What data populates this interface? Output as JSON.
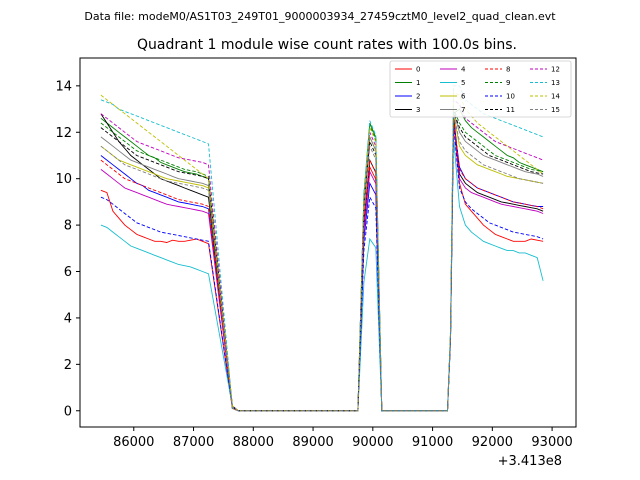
{
  "chart_data": {
    "type": "line",
    "supertitle": "Data file: modeM0/AS1T03_249T01_9000003934_27459cztM0_level2_quad_clean.evt",
    "title": "Quadrant 1 module wise count rates with 100.0s bins.",
    "x_offset_label": "+3.413e8",
    "xlim": [
      85100,
      93400
    ],
    "ylim": [
      -0.7,
      15.2
    ],
    "x_ticks": [
      86000,
      87000,
      88000,
      89000,
      90000,
      91000,
      92000,
      93000
    ],
    "y_ticks": [
      0,
      2,
      4,
      6,
      8,
      10,
      12,
      14
    ],
    "grid": false,
    "legend_location": "upper right",
    "series": [
      {
        "name": "0",
        "color": "#ff0000",
        "linestyle": "solid",
        "s1": [
          9.5,
          9.4,
          8.6,
          8.3,
          8.0,
          7.8,
          7.6,
          7.5,
          7.4,
          7.3,
          7.3,
          7.25,
          7.35,
          7.3,
          7.3,
          7.35,
          7.4,
          7.3,
          7.2
        ],
        "s2": [
          9.8,
          8.9,
          8.6,
          8.3,
          8.0,
          7.8,
          7.6,
          7.5,
          7.4,
          7.3,
          7.3,
          7.3,
          7.4,
          7.35,
          7.3
        ],
        "p2": 10.5,
        "p3": 12.6
      },
      {
        "name": "1",
        "color": "#008000",
        "linestyle": "solid",
        "s1": [
          12.6,
          12.4,
          12.2,
          12.0,
          11.8,
          11.6,
          11.4,
          11.2,
          11.0,
          10.9,
          10.7,
          10.6,
          10.5,
          10.4,
          10.3,
          10.25,
          10.2,
          10.1,
          10.0
        ],
        "s2": [
          13.0,
          12.5,
          12.2,
          12.0,
          11.8,
          11.6,
          11.4,
          11.2,
          11.0,
          10.9,
          10.7,
          10.6,
          10.5,
          10.4,
          10.3
        ],
        "p2": 12.4,
        "p3": 12.8
      },
      {
        "name": "2",
        "color": "#0000ff",
        "linestyle": "solid",
        "s1": [
          11.0,
          10.8,
          10.6,
          10.4,
          10.2,
          10.0,
          9.8,
          9.7,
          9.5,
          9.4,
          9.3,
          9.2,
          9.1,
          9.0,
          8.95,
          8.9,
          8.85,
          8.8,
          8.7
        ],
        "s2": [
          10.5,
          10.0,
          9.8,
          9.6,
          9.5,
          9.4,
          9.3,
          9.2,
          9.1,
          9.0,
          8.95,
          8.9,
          8.85,
          8.8,
          8.8
        ],
        "p2": 9.8,
        "p3": 12.5
      },
      {
        "name": "3",
        "color": "#000000",
        "linestyle": "solid",
        "s1": [
          12.8,
          12.4,
          12.0,
          11.6,
          11.3,
          11.0,
          10.8,
          10.6,
          10.4,
          10.2,
          10.0,
          9.9,
          9.8,
          9.7,
          9.6,
          9.5,
          9.4,
          9.3,
          9.2
        ],
        "s2": [
          10.2,
          9.8,
          9.6,
          9.4,
          9.3,
          9.2,
          9.1,
          9.0,
          8.95,
          8.9,
          8.85,
          8.8,
          8.75,
          8.7,
          8.6
        ],
        "p2": 10.8,
        "p3": 12.8
      },
      {
        "name": "4",
        "color": "#bf00bf",
        "linestyle": "solid",
        "s1": [
          10.4,
          10.2,
          10.0,
          9.8,
          9.6,
          9.5,
          9.4,
          9.3,
          9.2,
          9.1,
          9.0,
          8.9,
          8.85,
          8.8,
          8.75,
          8.7,
          8.65,
          8.6,
          8.5
        ],
        "s2": [
          10.0,
          9.6,
          9.4,
          9.3,
          9.2,
          9.1,
          9.0,
          8.9,
          8.85,
          8.8,
          8.75,
          8.7,
          8.65,
          8.6,
          8.5
        ],
        "p2": 10.3,
        "p3": 12.5
      },
      {
        "name": "5",
        "color": "#17becf",
        "linestyle": "solid",
        "s1": [
          8.0,
          7.9,
          7.7,
          7.5,
          7.3,
          7.1,
          7.0,
          6.9,
          6.8,
          6.7,
          6.6,
          6.5,
          6.4,
          6.3,
          6.25,
          6.2,
          6.1,
          6.0,
          5.9
        ],
        "s2": [
          8.8,
          8.0,
          7.7,
          7.5,
          7.3,
          7.2,
          7.1,
          7.0,
          6.9,
          6.9,
          6.8,
          6.8,
          6.7,
          6.6,
          5.6
        ],
        "p2": 7.4,
        "p3": 11.8
      },
      {
        "name": "6",
        "color": "#bfbf00",
        "linestyle": "solid",
        "s1": [
          11.4,
          11.2,
          11.0,
          10.8,
          10.7,
          10.6,
          10.5,
          10.4,
          10.3,
          10.2,
          10.1,
          10.0,
          9.95,
          9.9,
          9.85,
          9.8,
          9.75,
          9.7,
          9.6
        ],
        "s2": [
          11.4,
          11.0,
          10.8,
          10.6,
          10.5,
          10.4,
          10.3,
          10.2,
          10.1,
          10.05,
          10.0,
          9.95,
          9.9,
          9.85,
          9.8
        ],
        "p2": 11.8,
        "p3": 12.8
      },
      {
        "name": "7",
        "color": "#7f7f7f",
        "linestyle": "solid",
        "s1": [
          11.8,
          11.6,
          11.4,
          11.2,
          11.0,
          10.8,
          10.7,
          10.6,
          10.5,
          10.4,
          10.3,
          10.2,
          10.1,
          10.0,
          9.95,
          9.9,
          9.85,
          9.8,
          9.7
        ],
        "s2": [
          12.0,
          11.6,
          11.4,
          11.2,
          11.0,
          10.9,
          10.8,
          10.7,
          10.6,
          10.5,
          10.4,
          10.3,
          10.25,
          10.2,
          10.1
        ],
        "p2": 11.8,
        "p3": 12.9
      },
      {
        "name": "8",
        "color": "#ff0000",
        "linestyle": "dashed",
        "s1": [
          10.8,
          10.6,
          10.4,
          10.2,
          10.0,
          9.9,
          9.8,
          9.7,
          9.6,
          9.5,
          9.4,
          9.3,
          9.2,
          9.1,
          9.05,
          9.0,
          8.95,
          8.9,
          8.8
        ],
        "s2": [
          10.4,
          10.0,
          9.8,
          9.6,
          9.5,
          9.4,
          9.3,
          9.2,
          9.1,
          9.0,
          8.95,
          8.9,
          8.85,
          8.8,
          8.7
        ],
        "p2": 10.8,
        "p3": 12.6
      },
      {
        "name": "9",
        "color": "#008000",
        "linestyle": "dashed",
        "s1": [
          12.4,
          12.2,
          12.0,
          11.8,
          11.6,
          11.4,
          11.2,
          11.1,
          11.0,
          10.9,
          10.8,
          10.7,
          10.6,
          10.5,
          10.4,
          10.35,
          10.3,
          10.2,
          10.1
        ],
        "s2": [
          12.4,
          12.0,
          11.8,
          11.6,
          11.4,
          11.2,
          11.0,
          10.9,
          10.8,
          10.7,
          10.6,
          10.5,
          10.4,
          10.35,
          10.3
        ],
        "p2": 12.3,
        "p3": 13.0
      },
      {
        "name": "10",
        "color": "#0000ff",
        "linestyle": "dashed",
        "s1": [
          9.2,
          9.1,
          8.9,
          8.7,
          8.5,
          8.3,
          8.1,
          8.0,
          7.9,
          7.8,
          7.7,
          7.65,
          7.6,
          7.55,
          7.5,
          7.45,
          7.4,
          7.35,
          7.3
        ],
        "s2": [
          9.6,
          9.0,
          8.7,
          8.5,
          8.3,
          8.1,
          8.0,
          7.9,
          7.8,
          7.7,
          7.65,
          7.6,
          7.55,
          7.5,
          7.4
        ],
        "p2": 9.2,
        "p3": 12.3
      },
      {
        "name": "11",
        "color": "#000000",
        "linestyle": "dashed",
        "s1": [
          12.2,
          12.0,
          11.8,
          11.6,
          11.4,
          11.2,
          11.0,
          10.9,
          10.8,
          10.7,
          10.6,
          10.5,
          10.4,
          10.3,
          10.25,
          10.2,
          10.15,
          10.1,
          10.0
        ],
        "s2": [
          12.2,
          11.8,
          11.6,
          11.4,
          11.2,
          11.0,
          10.9,
          10.8,
          10.7,
          10.6,
          10.5,
          10.4,
          10.3,
          10.25,
          10.2
        ],
        "p2": 11.6,
        "p3": 12.9
      },
      {
        "name": "12",
        "color": "#bf00bf",
        "linestyle": "dashed",
        "s1": [
          12.8,
          12.6,
          12.4,
          12.2,
          12.0,
          11.8,
          11.6,
          11.5,
          11.4,
          11.3,
          11.2,
          11.1,
          11.0,
          10.9,
          10.85,
          10.8,
          10.75,
          10.7,
          10.6
        ],
        "s2": [
          13.2,
          12.6,
          12.4,
          12.2,
          12.0,
          11.8,
          11.6,
          11.5,
          11.4,
          11.3,
          11.2,
          11.1,
          11.0,
          10.9,
          10.8
        ],
        "p2": 12.0,
        "p3": 13.4
      },
      {
        "name": "13",
        "color": "#17becf",
        "linestyle": "dashed",
        "s1": [
          13.4,
          13.3,
          13.2,
          13.0,
          12.9,
          12.8,
          12.7,
          12.6,
          12.5,
          12.4,
          12.3,
          12.2,
          12.1,
          12.0,
          11.9,
          11.8,
          11.7,
          11.6,
          11.5
        ],
        "s2": [
          14.0,
          13.4,
          13.2,
          13.0,
          12.8,
          12.7,
          12.6,
          12.5,
          12.4,
          12.3,
          12.2,
          12.1,
          12.0,
          11.9,
          11.8
        ],
        "p2": 12.5,
        "p3": 14.0
      },
      {
        "name": "14",
        "color": "#bfbf00",
        "linestyle": "dashed",
        "s1": [
          13.6,
          13.4,
          13.2,
          13.0,
          12.8,
          12.6,
          12.4,
          12.2,
          12.0,
          11.8,
          11.6,
          11.4,
          11.2,
          11.0,
          10.8,
          10.6,
          10.4,
          10.2,
          10.0
        ],
        "s2": [
          13.6,
          13.0,
          12.7,
          12.4,
          12.2,
          12.0,
          11.8,
          11.6,
          11.4,
          11.2,
          11.0,
          10.8,
          10.6,
          10.4,
          10.2
        ],
        "p2": 12.2,
        "p3": 13.7
      },
      {
        "name": "15",
        "color": "#7f7f7f",
        "linestyle": "dashed",
        "s1": [
          11.4,
          11.2,
          11.0,
          10.8,
          10.6,
          10.5,
          10.4,
          10.3,
          10.2,
          10.1,
          10.0,
          9.9,
          9.85,
          9.8,
          9.75,
          9.7,
          9.65,
          9.6,
          9.5
        ],
        "s2": [
          11.6,
          11.2,
          11.0,
          10.8,
          10.6,
          10.5,
          10.4,
          10.3,
          10.2,
          10.1,
          10.0,
          9.95,
          9.9,
          9.85,
          9.8
        ],
        "p2": 11.4,
        "p3": 12.8
      }
    ],
    "segment_layout": {
      "seg1_start": 85450,
      "seg1_step": 100,
      "drop_x": 87650,
      "zero_ranges": [
        [
          87750,
          89750
        ],
        [
          90150,
          91250
        ]
      ],
      "peak2_x": [
        89850,
        89950,
        90050
      ],
      "seg2_start": 91350,
      "seg2_step": 100,
      "rise_x": 91250,
      "final_x": 92850
    }
  }
}
